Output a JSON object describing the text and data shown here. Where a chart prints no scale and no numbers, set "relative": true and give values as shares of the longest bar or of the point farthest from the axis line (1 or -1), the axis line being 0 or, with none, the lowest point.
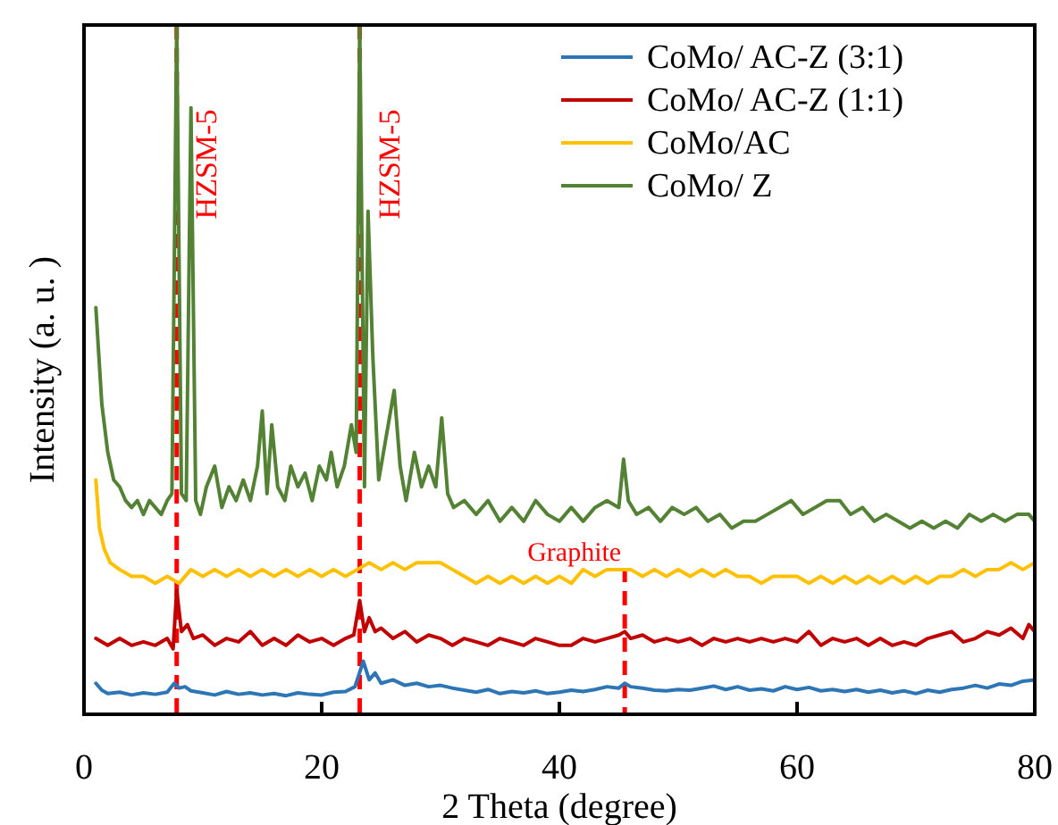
{
  "chart_data": {
    "type": "line",
    "xlabel": "2 Theta (degree)",
    "ylabel": "Intensity (a. u. )",
    "relative": true,
    "xlim": [
      0,
      80
    ],
    "xticks": [
      0,
      20,
      40,
      60,
      80
    ],
    "grid": false,
    "legend": "top right",
    "line_style": "solid",
    "marker": "none",
    "ref_lines": [
      {
        "axis": "x",
        "value": 7.8,
        "label": "HZSM-5",
        "color": "#ff0000",
        "line_style": "dashed"
      },
      {
        "axis": "x",
        "value": 23.2,
        "label": "HZSM-5",
        "color": "#ff0000",
        "line_style": "dashed"
      },
      {
        "axis": "x",
        "value": 45.5,
        "label": "Graphite",
        "color": "#ff0000",
        "line_style": "dashed"
      }
    ],
    "series": [
      {
        "name": "CoMo/ AC-Z (3:1)",
        "color": "#2e75b6",
        "x": [
          1,
          1.5,
          2,
          3,
          4,
          5,
          6,
          7,
          7.6,
          8,
          8.5,
          9,
          10,
          11,
          12,
          13,
          14,
          15,
          16,
          17,
          18,
          19,
          20,
          21,
          22,
          22.8,
          23.5,
          24,
          24.5,
          25,
          26,
          27,
          28,
          29,
          30,
          31,
          32,
          33,
          34,
          35,
          36,
          37,
          38,
          39,
          40,
          41,
          42,
          43,
          44,
          45,
          45.5,
          46,
          47,
          48,
          49,
          50,
          51,
          52,
          53,
          54,
          55,
          56,
          57,
          58,
          59,
          60,
          61,
          62,
          63,
          64,
          65,
          66,
          67,
          68,
          69,
          70,
          71,
          72,
          73,
          74,
          75,
          76,
          77,
          78,
          79,
          80
        ],
        "values": [
          0.045,
          0.035,
          0.03,
          0.032,
          0.028,
          0.031,
          0.029,
          0.032,
          0.045,
          0.038,
          0.04,
          0.034,
          0.031,
          0.028,
          0.033,
          0.029,
          0.031,
          0.028,
          0.03,
          0.027,
          0.031,
          0.029,
          0.028,
          0.032,
          0.033,
          0.04,
          0.077,
          0.05,
          0.06,
          0.045,
          0.05,
          0.042,
          0.045,
          0.04,
          0.042,
          0.038,
          0.035,
          0.032,
          0.036,
          0.03,
          0.033,
          0.031,
          0.034,
          0.03,
          0.032,
          0.035,
          0.033,
          0.036,
          0.04,
          0.038,
          0.045,
          0.04,
          0.038,
          0.035,
          0.034,
          0.036,
          0.035,
          0.038,
          0.041,
          0.036,
          0.04,
          0.035,
          0.037,
          0.034,
          0.04,
          0.036,
          0.039,
          0.034,
          0.036,
          0.033,
          0.036,
          0.032,
          0.035,
          0.031,
          0.034,
          0.03,
          0.035,
          0.032,
          0.036,
          0.038,
          0.042,
          0.038,
          0.044,
          0.042,
          0.048,
          0.05
        ]
      },
      {
        "name": "CoMo/ AC-Z (1:1)",
        "color": "#c00000",
        "x": [
          1,
          2,
          3,
          4,
          5,
          6,
          7,
          7.5,
          7.8,
          8.2,
          8.7,
          9.2,
          10,
          11,
          12,
          13,
          14,
          15,
          16,
          17,
          18,
          19,
          20,
          21,
          22,
          22.7,
          23.2,
          23.6,
          24,
          24.5,
          25,
          26,
          27,
          28,
          29,
          30,
          31,
          32,
          33,
          34,
          35,
          36,
          37,
          38,
          39,
          40,
          41,
          42,
          43,
          44,
          45,
          45.5,
          46,
          47,
          48,
          49,
          50,
          51,
          52,
          53,
          54,
          55,
          56,
          57,
          58,
          59,
          60,
          61,
          62,
          63,
          64,
          65,
          66,
          67,
          68,
          69,
          70,
          71,
          72,
          73,
          74,
          75,
          76,
          77,
          78,
          79,
          79.5,
          80
        ],
        "values": [
          0.11,
          0.1,
          0.11,
          0.1,
          0.105,
          0.1,
          0.11,
          0.095,
          0.18,
          0.12,
          0.13,
          0.11,
          0.115,
          0.1,
          0.11,
          0.105,
          0.12,
          0.1,
          0.11,
          0.1,
          0.115,
          0.105,
          0.11,
          0.1,
          0.11,
          0.115,
          0.165,
          0.12,
          0.14,
          0.12,
          0.125,
          0.11,
          0.12,
          0.105,
          0.115,
          0.11,
          0.1,
          0.11,
          0.105,
          0.1,
          0.11,
          0.105,
          0.1,
          0.11,
          0.105,
          0.1,
          0.1,
          0.11,
          0.105,
          0.11,
          0.115,
          0.12,
          0.11,
          0.115,
          0.105,
          0.11,
          0.105,
          0.11,
          0.1,
          0.11,
          0.105,
          0.11,
          0.105,
          0.11,
          0.105,
          0.11,
          0.105,
          0.12,
          0.1,
          0.11,
          0.105,
          0.11,
          0.1,
          0.11,
          0.1,
          0.105,
          0.1,
          0.11,
          0.115,
          0.12,
          0.105,
          0.11,
          0.12,
          0.115,
          0.125,
          0.11,
          0.13,
          0.12
        ]
      },
      {
        "name": "CoMo/AC",
        "color": "#ffc000",
        "x": [
          1,
          1.3,
          1.7,
          2.2,
          3,
          4,
          5,
          6,
          7,
          8,
          9,
          10,
          11,
          12,
          13,
          14,
          15,
          16,
          17,
          18,
          19,
          20,
          21,
          22,
          23,
          24,
          25,
          26,
          27,
          28,
          29,
          30,
          31,
          32,
          33,
          34,
          35,
          36,
          37,
          38,
          39,
          40,
          41,
          42,
          43,
          44,
          45,
          46,
          47,
          48,
          49,
          50,
          51,
          52,
          53,
          54,
          55,
          56,
          57,
          58,
          59,
          60,
          61,
          62,
          63,
          64,
          65,
          66,
          67,
          68,
          69,
          70,
          71,
          72,
          73,
          74,
          75,
          76,
          77,
          78,
          79,
          80
        ],
        "values": [
          0.34,
          0.27,
          0.24,
          0.22,
          0.21,
          0.2,
          0.2,
          0.19,
          0.2,
          0.19,
          0.21,
          0.2,
          0.21,
          0.2,
          0.21,
          0.2,
          0.21,
          0.2,
          0.21,
          0.2,
          0.21,
          0.2,
          0.21,
          0.2,
          0.21,
          0.22,
          0.21,
          0.22,
          0.21,
          0.22,
          0.22,
          0.22,
          0.21,
          0.2,
          0.19,
          0.2,
          0.19,
          0.2,
          0.19,
          0.2,
          0.19,
          0.2,
          0.19,
          0.21,
          0.2,
          0.21,
          0.21,
          0.21,
          0.2,
          0.21,
          0.2,
          0.21,
          0.2,
          0.21,
          0.2,
          0.21,
          0.2,
          0.2,
          0.19,
          0.2,
          0.2,
          0.2,
          0.19,
          0.2,
          0.19,
          0.2,
          0.19,
          0.2,
          0.19,
          0.2,
          0.19,
          0.2,
          0.19,
          0.2,
          0.2,
          0.21,
          0.2,
          0.21,
          0.21,
          0.22,
          0.21,
          0.22
        ]
      },
      {
        "name": "CoMo/ Z",
        "color": "#548235",
        "x": [
          1,
          1.5,
          2,
          2.5,
          3,
          3.5,
          4,
          4.5,
          5,
          5.5,
          6,
          6.5,
          7,
          7.4,
          7.8,
          8.2,
          8.6,
          9,
          9.4,
          9.8,
          10.3,
          11,
          11.6,
          12.2,
          12.8,
          13.4,
          14,
          14.6,
          15,
          15.4,
          15.8,
          16.3,
          16.9,
          17.4,
          18,
          18.6,
          19.2,
          19.8,
          20.4,
          20.8,
          21.3,
          21.9,
          22.5,
          22.9,
          23.2,
          23.6,
          23.9,
          24.3,
          24.8,
          25.4,
          26.1,
          26.6,
          27.1,
          27.8,
          28.4,
          29,
          29.6,
          30.1,
          30.6,
          31.1,
          32,
          33,
          34,
          35,
          36,
          37,
          38,
          39,
          40,
          41,
          42,
          43,
          44,
          45,
          45.4,
          45.8,
          46.5,
          47.5,
          48.5,
          49.5,
          50.5,
          51.5,
          52.5,
          53.5,
          54.5,
          55.5,
          56.5,
          57.5,
          58.5,
          59.5,
          60.5,
          61.5,
          62.5,
          63.6,
          64.5,
          65.5,
          66.5,
          67.5,
          68.5,
          69.5,
          70.5,
          71.5,
          72.5,
          73.5,
          74.5,
          75.5,
          76.5,
          77.5,
          78.5,
          79.5,
          80
        ],
        "values": [
          0.59,
          0.45,
          0.38,
          0.34,
          0.33,
          0.31,
          0.3,
          0.31,
          0.29,
          0.31,
          0.3,
          0.29,
          0.31,
          0.32,
          1,
          0.32,
          0.31,
          0.88,
          0.31,
          0.29,
          0.33,
          0.36,
          0.3,
          0.33,
          0.31,
          0.34,
          0.31,
          0.36,
          0.44,
          0.32,
          0.42,
          0.33,
          0.31,
          0.36,
          0.33,
          0.35,
          0.31,
          0.36,
          0.34,
          0.38,
          0.33,
          0.36,
          0.42,
          0.38,
          1,
          0.33,
          0.73,
          0.52,
          0.34,
          0.4,
          0.47,
          0.36,
          0.31,
          0.38,
          0.33,
          0.36,
          0.33,
          0.43,
          0.32,
          0.3,
          0.31,
          0.29,
          0.31,
          0.28,
          0.3,
          0.28,
          0.31,
          0.29,
          0.28,
          0.3,
          0.28,
          0.3,
          0.31,
          0.3,
          0.37,
          0.31,
          0.29,
          0.3,
          0.28,
          0.3,
          0.29,
          0.3,
          0.28,
          0.29,
          0.27,
          0.28,
          0.28,
          0.29,
          0.3,
          0.31,
          0.29,
          0.3,
          0.31,
          0.31,
          0.29,
          0.3,
          0.28,
          0.29,
          0.28,
          0.27,
          0.28,
          0.27,
          0.28,
          0.27,
          0.29,
          0.28,
          0.29,
          0.28,
          0.29,
          0.29,
          0.28
        ]
      }
    ]
  }
}
